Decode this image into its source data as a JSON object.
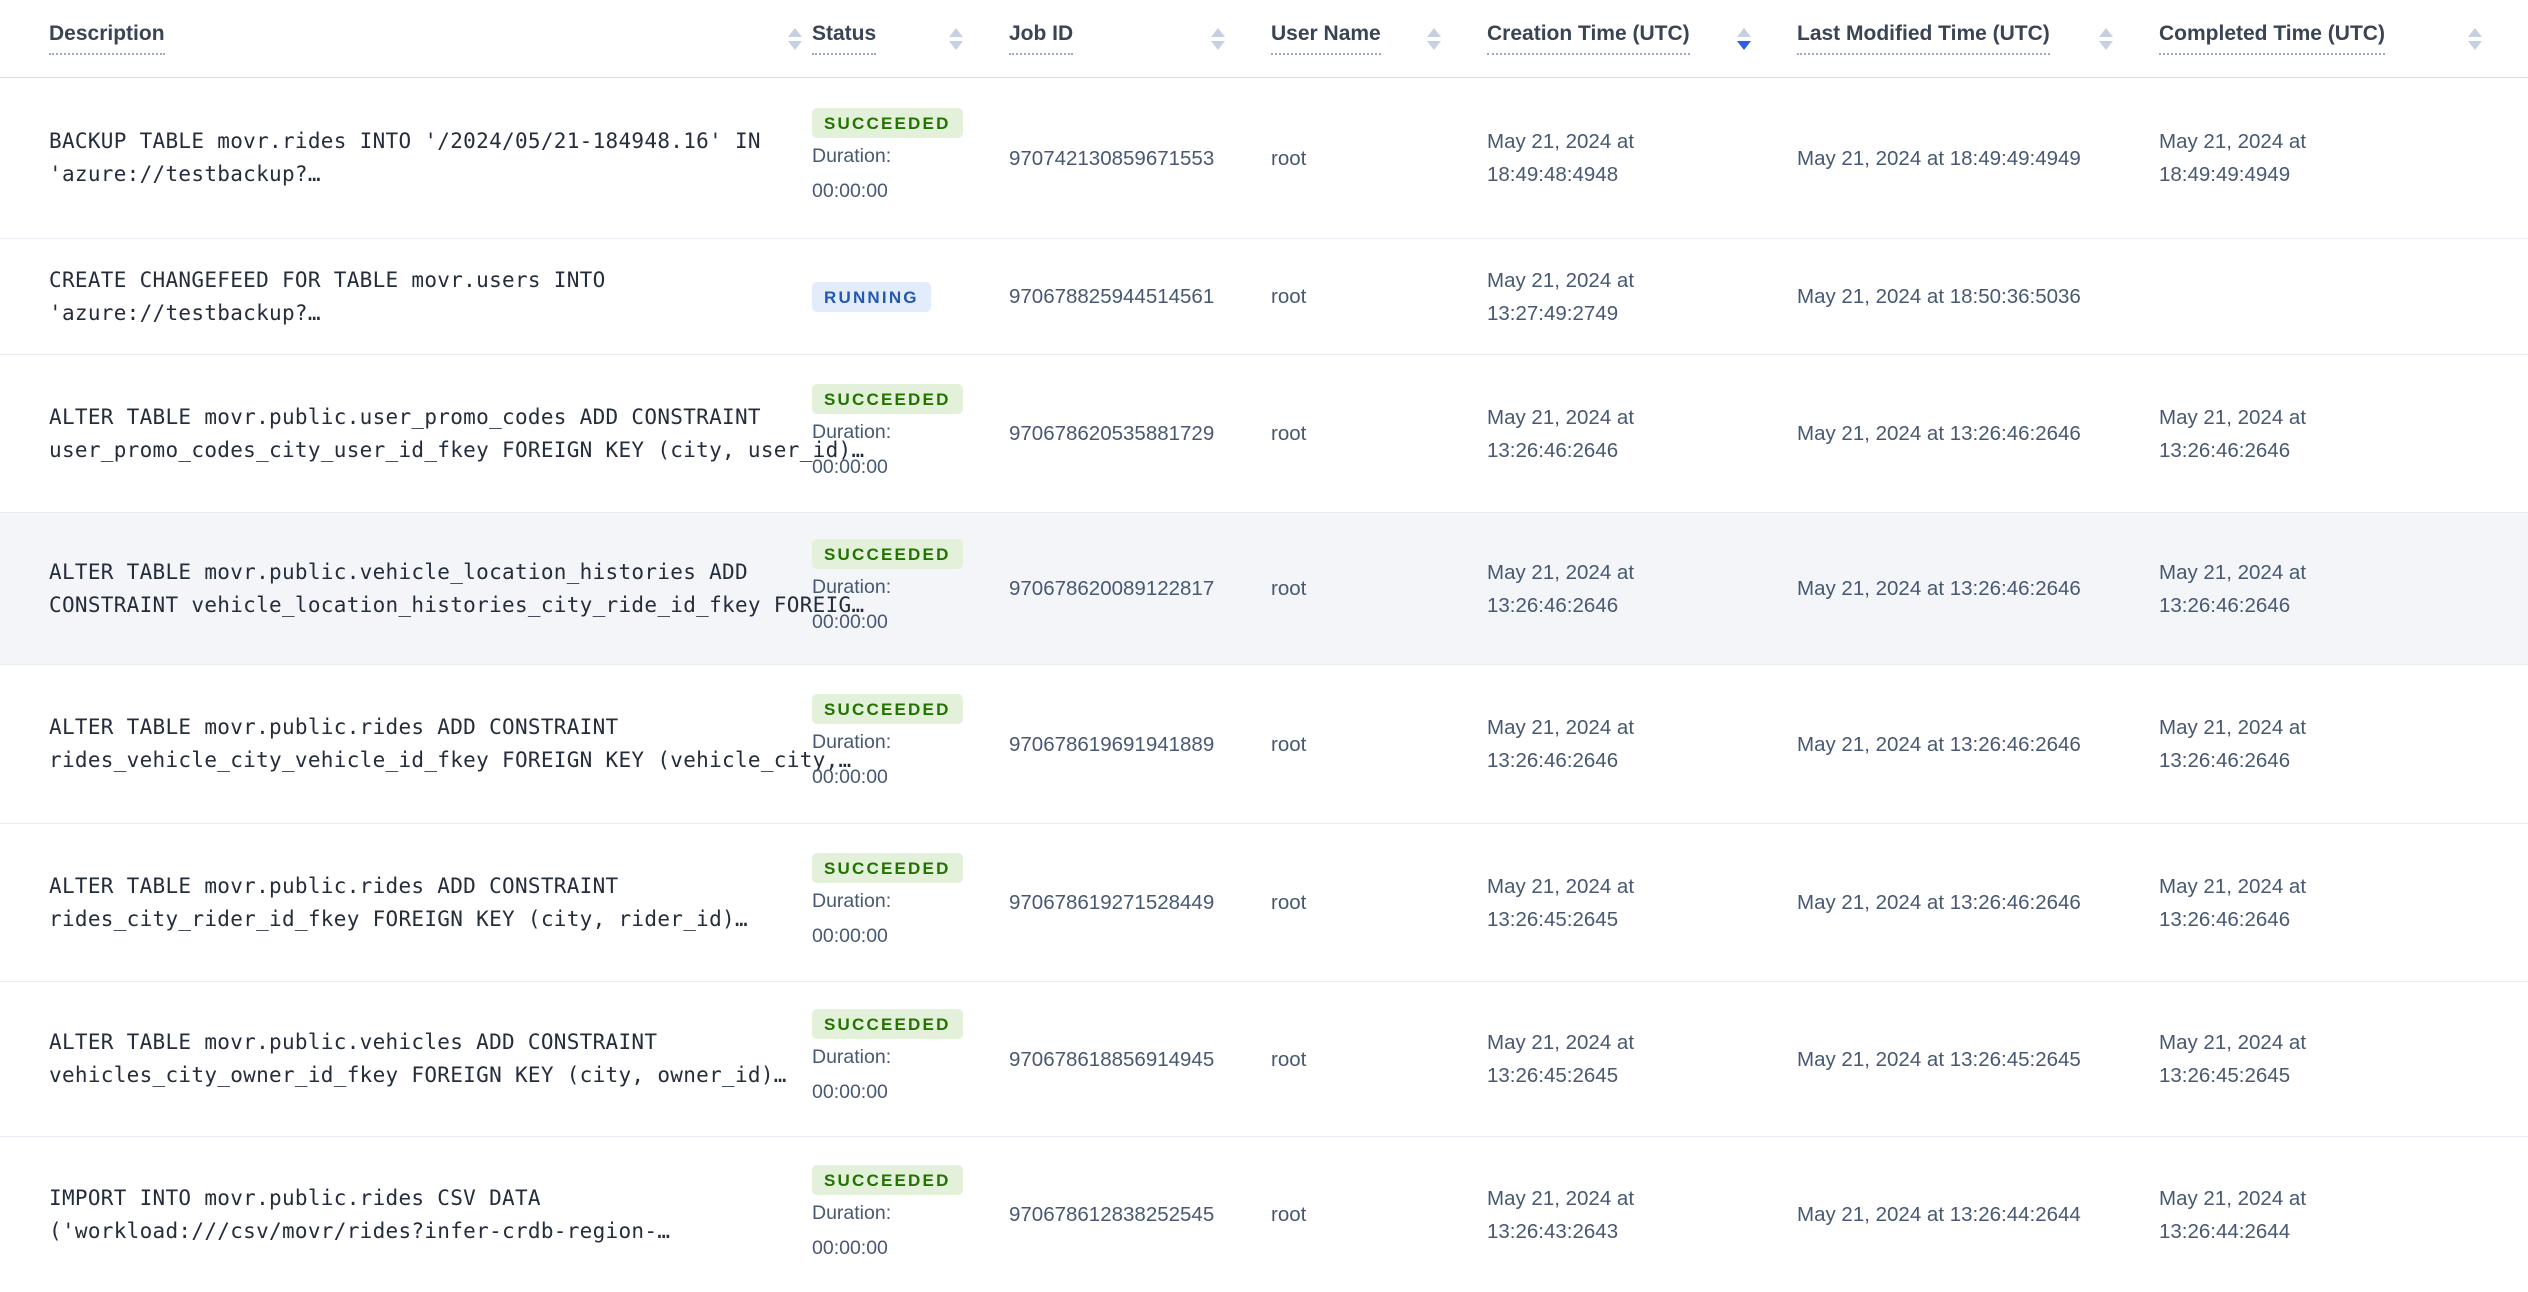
{
  "header": {
    "columns": [
      {
        "label": "Description",
        "sort": "none"
      },
      {
        "label": "Status",
        "sort": "none"
      },
      {
        "label": "Job ID",
        "sort": "none"
      },
      {
        "label": "User Name",
        "sort": "none"
      },
      {
        "label": "Creation Time (UTC)",
        "sort": "desc"
      },
      {
        "label": "Last Modified Time (UTC)",
        "sort": "none"
      },
      {
        "label": "Completed Time (UTC)",
        "sort": "none"
      }
    ]
  },
  "colors": {
    "sort_active": "#2b5cec",
    "sort_inactive": "#c7cfe2",
    "header_text": "#394455",
    "row_highlight_bg": "#f4f5f9",
    "badges": {
      "SUCCEEDED": {
        "bg": "#e3f1da",
        "fg": "#237300"
      },
      "RUNNING": {
        "bg": "#e2ecfb",
        "fg": "#2458b3"
      }
    }
  },
  "rows": [
    {
      "description_line1": "BACKUP TABLE movr.rides INTO '/2024/05/21-184948.16' IN",
      "description_line2": "'azure://testbackup?…",
      "status": "SUCCEEDED",
      "duration_label": "Duration:",
      "duration_value": "00:00:00",
      "job_id": "970742130859671553",
      "user_name": "root",
      "creation_line1": "May 21, 2024 at",
      "creation_line2": "18:49:48:4948",
      "modified": "May 21, 2024 at 18:49:49:4949",
      "completed_line1": "May 21, 2024 at",
      "completed_line2": "18:49:49:4949",
      "highlighted": false
    },
    {
      "description_line1": "CREATE CHANGEFEED FOR TABLE movr.users INTO",
      "description_line2": "'azure://testbackup?…",
      "status": "RUNNING",
      "duration_label": "",
      "duration_value": "",
      "job_id": "970678825944514561",
      "user_name": "root",
      "creation_line1": "May 21, 2024 at",
      "creation_line2": "13:27:49:2749",
      "modified": "May 21, 2024 at 18:50:36:5036",
      "completed_line1": "",
      "completed_line2": "",
      "highlighted": false
    },
    {
      "description_line1": "ALTER TABLE movr.public.user_promo_codes ADD CONSTRAINT",
      "description_line2": "user_promo_codes_city_user_id_fkey FOREIGN KEY (city, user_id)…",
      "status": "SUCCEEDED",
      "duration_label": "Duration:",
      "duration_value": "00:00:00",
      "job_id": "970678620535881729",
      "user_name": "root",
      "creation_line1": "May 21, 2024 at",
      "creation_line2": "13:26:46:2646",
      "modified": "May 21, 2024 at 13:26:46:2646",
      "completed_line1": "May 21, 2024 at",
      "completed_line2": "13:26:46:2646",
      "highlighted": false
    },
    {
      "description_line1": "ALTER TABLE movr.public.vehicle_location_histories ADD",
      "description_line2": "CONSTRAINT vehicle_location_histories_city_ride_id_fkey FOREIG…",
      "status": "SUCCEEDED",
      "duration_label": "Duration:",
      "duration_value": "00:00:00",
      "job_id": "970678620089122817",
      "user_name": "root",
      "creation_line1": "May 21, 2024 at",
      "creation_line2": "13:26:46:2646",
      "modified": "May 21, 2024 at 13:26:46:2646",
      "completed_line1": "May 21, 2024 at",
      "completed_line2": "13:26:46:2646",
      "highlighted": true
    },
    {
      "description_line1": "ALTER TABLE movr.public.rides ADD CONSTRAINT",
      "description_line2": "rides_vehicle_city_vehicle_id_fkey FOREIGN KEY (vehicle_city,…",
      "status": "SUCCEEDED",
      "duration_label": "Duration:",
      "duration_value": "00:00:00",
      "job_id": "970678619691941889",
      "user_name": "root",
      "creation_line1": "May 21, 2024 at",
      "creation_line2": "13:26:46:2646",
      "modified": "May 21, 2024 at 13:26:46:2646",
      "completed_line1": "May 21, 2024 at",
      "completed_line2": "13:26:46:2646",
      "highlighted": false
    },
    {
      "description_line1": "ALTER TABLE movr.public.rides ADD CONSTRAINT",
      "description_line2": "rides_city_rider_id_fkey FOREIGN KEY (city, rider_id)…",
      "status": "SUCCEEDED",
      "duration_label": "Duration:",
      "duration_value": "00:00:00",
      "job_id": "970678619271528449",
      "user_name": "root",
      "creation_line1": "May 21, 2024 at",
      "creation_line2": "13:26:45:2645",
      "modified": "May 21, 2024 at 13:26:46:2646",
      "completed_line1": "May 21, 2024 at",
      "completed_line2": "13:26:46:2646",
      "highlighted": false
    },
    {
      "description_line1": "ALTER TABLE movr.public.vehicles ADD CONSTRAINT",
      "description_line2": "vehicles_city_owner_id_fkey FOREIGN KEY (city, owner_id)…",
      "status": "SUCCEEDED",
      "duration_label": "Duration:",
      "duration_value": "00:00:00",
      "job_id": "970678618856914945",
      "user_name": "root",
      "creation_line1": "May 21, 2024 at",
      "creation_line2": "13:26:45:2645",
      "modified": "May 21, 2024 at 13:26:45:2645",
      "completed_line1": "May 21, 2024 at",
      "completed_line2": "13:26:45:2645",
      "highlighted": false
    },
    {
      "description_line1": "IMPORT INTO movr.public.rides CSV DATA",
      "description_line2": "('workload:///csv/movr/rides?infer-crdb-region-…",
      "status": "SUCCEEDED",
      "duration_label": "Duration:",
      "duration_value": "00:00:00",
      "job_id": "970678612838252545",
      "user_name": "root",
      "creation_line1": "May 21, 2024 at",
      "creation_line2": "13:26:43:2643",
      "modified": "May 21, 2024 at 13:26:44:2644",
      "completed_line1": "May 21, 2024 at",
      "completed_line2": "13:26:44:2644",
      "highlighted": false
    }
  ]
}
